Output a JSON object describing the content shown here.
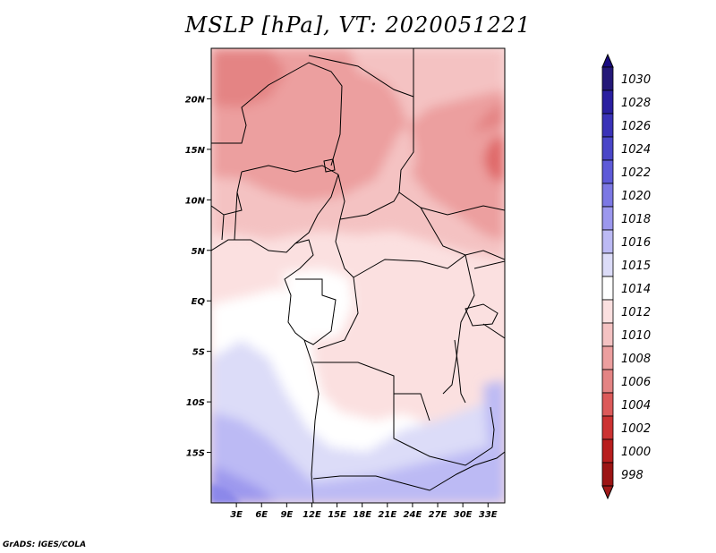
{
  "title": "MSLP [hPa], VT: 2020051221",
  "credit": "GrADS: IGES/COLA",
  "map": {
    "variable": "Mean sea level pressure",
    "units": "hPa",
    "lon_range": [
      0,
      35
    ],
    "lat_range": [
      -20,
      25
    ],
    "x_ticks": [
      {
        "lon": 3,
        "label": "3E"
      },
      {
        "lon": 6,
        "label": "6E"
      },
      {
        "lon": 9,
        "label": "9E"
      },
      {
        "lon": 12,
        "label": "12E"
      },
      {
        "lon": 15,
        "label": "15E"
      },
      {
        "lon": 18,
        "label": "18E"
      },
      {
        "lon": 21,
        "label": "21E"
      },
      {
        "lon": 24,
        "label": "24E"
      },
      {
        "lon": 27,
        "label": "27E"
      },
      {
        "lon": 30,
        "label": "30E"
      },
      {
        "lon": 33,
        "label": "33E"
      }
    ],
    "y_ticks": [
      {
        "lat": 20,
        "label": "20N"
      },
      {
        "lat": 15,
        "label": "15N"
      },
      {
        "lat": 10,
        "label": "10N"
      },
      {
        "lat": 5,
        "label": "5N"
      },
      {
        "lat": 0,
        "label": "EQ"
      },
      {
        "lat": -5,
        "label": "5S"
      },
      {
        "lat": -10,
        "label": "10S"
      },
      {
        "lat": -15,
        "label": "15S"
      }
    ]
  },
  "colorbar": {
    "levels": [
      {
        "label": "1030",
        "color": "#241878"
      },
      {
        "label": "1028",
        "color": "#2a1fa0"
      },
      {
        "label": "1026",
        "color": "#3a32b8"
      },
      {
        "label": "1024",
        "color": "#4a46c8"
      },
      {
        "label": "1022",
        "color": "#5e5ad8"
      },
      {
        "label": "1020",
        "color": "#7c78e4"
      },
      {
        "label": "1018",
        "color": "#9c98ee"
      },
      {
        "label": "1016",
        "color": "#bcbaf4"
      },
      {
        "label": "1015",
        "color": "#dcdcf8"
      },
      {
        "label": "1014",
        "color": "#ffffff"
      },
      {
        "label": "1012",
        "color": "#fbe0e0"
      },
      {
        "label": "1010",
        "color": "#f4c2c2"
      },
      {
        "label": "1008",
        "color": "#ec9f9f"
      },
      {
        "label": "1006",
        "color": "#e48484"
      },
      {
        "label": "1004",
        "color": "#dc5a5a"
      },
      {
        "label": "1002",
        "color": "#cc3232"
      },
      {
        "label": "1000",
        "color": "#b81e1e"
      },
      {
        "label": "998",
        "color": "#9c1414"
      }
    ],
    "top_arrow_color": "#1a0c80",
    "bottom_arrow_color": "#a01818"
  }
}
